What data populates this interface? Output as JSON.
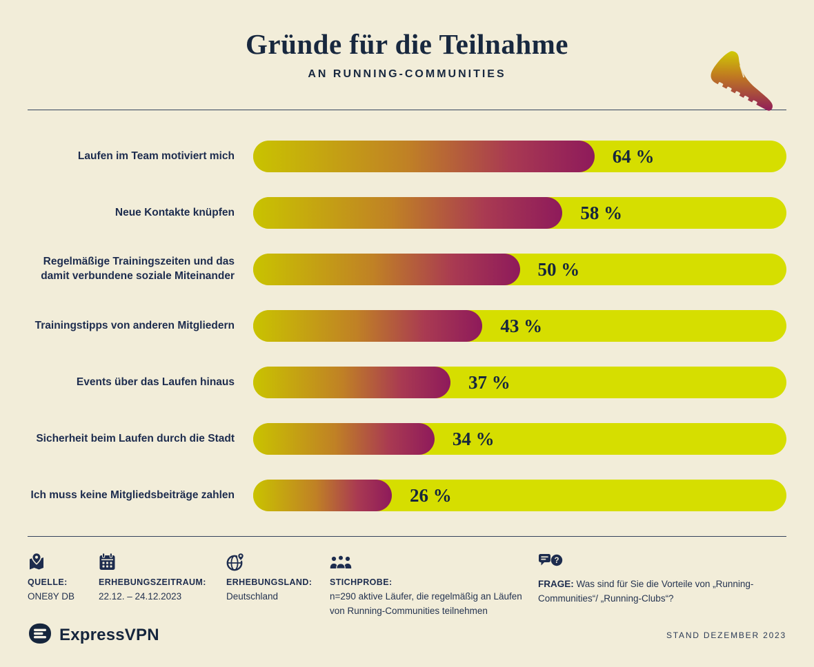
{
  "colors": {
    "background": "#f2edd9",
    "navy": "#1d2c4e",
    "bar_track": "#d6de00",
    "bar_gradient_start": "#c9c300",
    "bar_gradient_mid": "#c08125",
    "bar_gradient_end": "#8e1a5b"
  },
  "header": {
    "title": "Gründe für die Teilnahme",
    "subtitle": "AN RUNNING-COMMUNITIES"
  },
  "chart_data": {
    "type": "bar",
    "orientation": "horizontal",
    "title": "Gründe für die Teilnahme an Running-Communities",
    "unit": "%",
    "xlim": [
      0,
      100
    ],
    "grid": false,
    "legend": false,
    "categories": [
      "Laufen im Team motiviert mich",
      "Neue Kontakte knüpfen",
      "Regelmäßige Trainingszeiten und das damit verbundene soziale Miteinander",
      "Trainingstipps von anderen Mitgliedern",
      "Events über das Laufen hinaus",
      "Sicherheit beim Laufen durch die Stadt",
      "Ich muss keine Mitgliedsbeiträge zahlen"
    ],
    "values": [
      64,
      58,
      50,
      43,
      37,
      34,
      26
    ],
    "value_labels": [
      "64 %",
      "58 %",
      "50 %",
      "43 %",
      "37 %",
      "34 %",
      "26 %"
    ]
  },
  "footer": {
    "items": [
      {
        "icon": "map-pin-icon",
        "label": "QUELLE:",
        "value": "ONE8Y DB"
      },
      {
        "icon": "calendar-icon",
        "label": "ERHEBUNGSZEITRAUM:",
        "value": "22.12. – 24.12.2023"
      },
      {
        "icon": "globe-pin-icon",
        "label": "ERHEBUNGSLAND:",
        "value": "Deutschland"
      },
      {
        "icon": "people-group-icon",
        "label": "STICHPROBE:",
        "value": "n=290 aktive Läufer, die regelmäßig an Läufen von Running-Communities teilnehmen"
      },
      {
        "icon": "question-bubbles-icon",
        "label": "FRAGE:",
        "value": "Was sind für Sie die Vorteile von „Running-Communities“/ „Running-Clubs“?"
      }
    ]
  },
  "branding": {
    "logo_text": "ExpressVPN",
    "stand_text": "STAND DEZEMBER 2023"
  }
}
